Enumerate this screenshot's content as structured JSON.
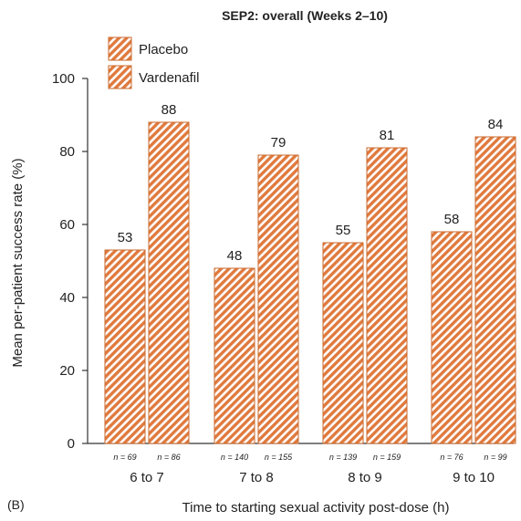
{
  "chart_data": {
    "type": "bar",
    "title": "SEP2: overall (Weeks 2–10)",
    "panel_label": "(B)",
    "xlabel": "Time to starting sexual activity post-dose (h)",
    "ylabel": "Mean per-patient success rate (%)",
    "ylim": [
      0,
      100
    ],
    "yticks": [
      0,
      20,
      40,
      60,
      80,
      100
    ],
    "categories": [
      "6 to 7",
      "7 to 8",
      "8 to 9",
      "9 to 10"
    ],
    "series": [
      {
        "name": "Placebo",
        "values": [
          53,
          48,
          55,
          58
        ],
        "data_labels": [
          "53",
          "48",
          "55",
          "58"
        ],
        "n_labels": [
          "n = 69",
          "n = 140",
          "n = 139",
          "n = 76"
        ]
      },
      {
        "name": "Vardenafil",
        "values": [
          88,
          79,
          81,
          84
        ],
        "data_labels": [
          "88",
          "79",
          "81",
          "84"
        ],
        "n_labels": [
          "n = 86",
          "n = 155",
          "n = 159",
          "n = 99"
        ]
      }
    ],
    "legend_position": "top-left",
    "grid": false,
    "colors": {
      "bar_fill": "#ffffff",
      "bar_hatch": "#e07a3e",
      "bar_edge": "#c9692e",
      "axis": "#333333"
    }
  }
}
